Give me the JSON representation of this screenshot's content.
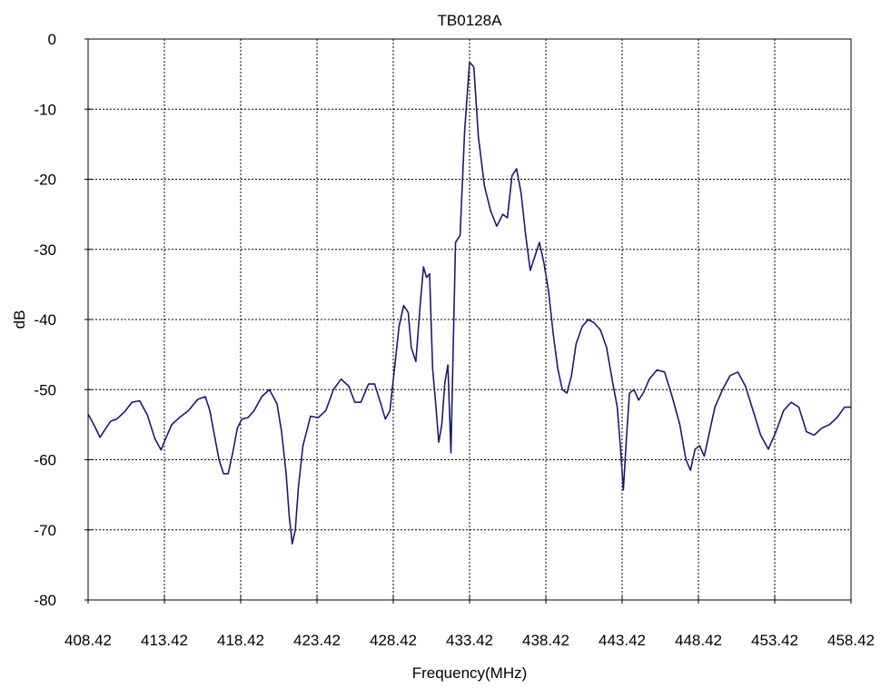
{
  "chart_data": {
    "type": "line",
    "title": "TB0128A",
    "xlabel": "Frequency(MHz)",
    "ylabel": "dB",
    "xlim": [
      408.42,
      458.42
    ],
    "ylim": [
      -80,
      0
    ],
    "x_ticks": [
      "408.42",
      "413.42",
      "418.42",
      "423.42",
      "428.42",
      "433.42",
      "438.42",
      "443.42",
      "448.42",
      "453.42",
      "458.42"
    ],
    "y_ticks": [
      "0",
      "-10",
      "-20",
      "-30",
      "-40",
      "-50",
      "-60",
      "-70",
      "-80"
    ],
    "grid": true,
    "grid_style": "dotted",
    "legend": false,
    "series": [
      {
        "color": "#1a1a6e",
        "x": [
          408.42,
          408.8,
          409.2,
          409.5,
          409.9,
          410.3,
          410.8,
          411.3,
          411.8,
          412.3,
          412.8,
          413.2,
          413.5,
          413.9,
          414.4,
          415.0,
          415.6,
          416.1,
          416.4,
          416.7,
          417.0,
          417.3,
          417.6,
          417.9,
          418.2,
          418.5,
          418.9,
          419.3,
          419.8,
          420.3,
          420.8,
          421.1,
          421.4,
          421.6,
          421.8,
          422.0,
          422.2,
          422.5,
          423.0,
          423.5,
          424.0,
          424.5,
          425.0,
          425.5,
          425.9,
          426.3,
          426.8,
          427.2,
          427.6,
          427.9,
          428.2,
          428.5,
          428.8,
          429.1,
          429.4,
          429.6,
          429.9,
          430.2,
          430.4,
          430.6,
          430.8,
          431.0,
          431.2,
          431.4,
          431.6,
          431.8,
          432.0,
          432.2,
          432.5,
          432.8,
          433.1,
          433.42,
          433.7,
          434.0,
          434.4,
          434.8,
          435.2,
          435.6,
          435.9,
          436.2,
          436.5,
          436.8,
          437.1,
          437.4,
          437.7,
          438.0,
          438.3,
          438.6,
          438.9,
          439.2,
          439.5,
          439.8,
          440.1,
          440.4,
          440.8,
          441.2,
          441.6,
          442.0,
          442.4,
          442.8,
          443.1,
          443.3,
          443.5,
          443.7,
          443.9,
          444.2,
          444.5,
          444.8,
          445.2,
          445.7,
          446.2,
          446.7,
          447.2,
          447.6,
          447.9,
          448.2,
          448.5,
          448.8,
          449.1,
          449.5,
          450.0,
          450.5,
          451.0,
          451.5,
          452.0,
          452.5,
          453.0,
          453.5,
          454.0,
          454.5,
          455.0,
          455.5,
          456.0,
          456.5,
          457.0,
          457.5,
          458.0,
          458.42
        ],
        "y": [
          -53.5,
          -55.0,
          -56.8,
          -55.8,
          -54.5,
          -54.2,
          -53.2,
          -51.8,
          -51.6,
          -53.6,
          -57.0,
          -58.6,
          -57.0,
          -55.0,
          -54.0,
          -53.0,
          -51.4,
          -51.0,
          -53.0,
          -56.5,
          -60.0,
          -62.0,
          -62.0,
          -59.0,
          -55.5,
          -54.2,
          -54.0,
          -53.0,
          -51.0,
          -50.0,
          -52.0,
          -56.0,
          -62.0,
          -68.0,
          -72.0,
          -70.0,
          -64.0,
          -58.0,
          -53.8,
          -54.0,
          -53.0,
          -50.0,
          -48.5,
          -49.5,
          -51.8,
          -51.8,
          -49.2,
          -49.2,
          -52.0,
          -54.2,
          -53.0,
          -47.0,
          -41.0,
          -38.0,
          -39.0,
          -44.0,
          -46.0,
          -37.5,
          -32.5,
          -34.0,
          -33.5,
          -47.0,
          -52.0,
          -57.5,
          -55.0,
          -49.0,
          -46.5,
          -59.0,
          -29.0,
          -28.0,
          -13.0,
          -3.3,
          -4.0,
          -14.0,
          -21.0,
          -24.5,
          -26.7,
          -25.0,
          -25.5,
          -19.5,
          -18.5,
          -22.0,
          -28.0,
          -33.0,
          -31.0,
          -29.0,
          -32.0,
          -36.0,
          -42.0,
          -47.0,
          -50.0,
          -50.5,
          -48.0,
          -43.5,
          -41.0,
          -40.0,
          -40.5,
          -41.5,
          -44.0,
          -49.0,
          -52.5,
          -58.0,
          -64.3,
          -57.0,
          -50.5,
          -50.0,
          -51.5,
          -50.5,
          -48.5,
          -47.2,
          -47.5,
          -51.0,
          -55.0,
          -60.0,
          -61.5,
          -58.5,
          -58.0,
          -59.5,
          -56.5,
          -52.5,
          -50.0,
          -48.0,
          -47.5,
          -49.5,
          -53.0,
          -56.5,
          -58.5,
          -56.0,
          -53.0,
          -51.8,
          -52.5,
          -56.0,
          -56.5,
          -55.5,
          -55.0,
          -54.0,
          -52.5,
          -52.5
        ]
      }
    ]
  }
}
